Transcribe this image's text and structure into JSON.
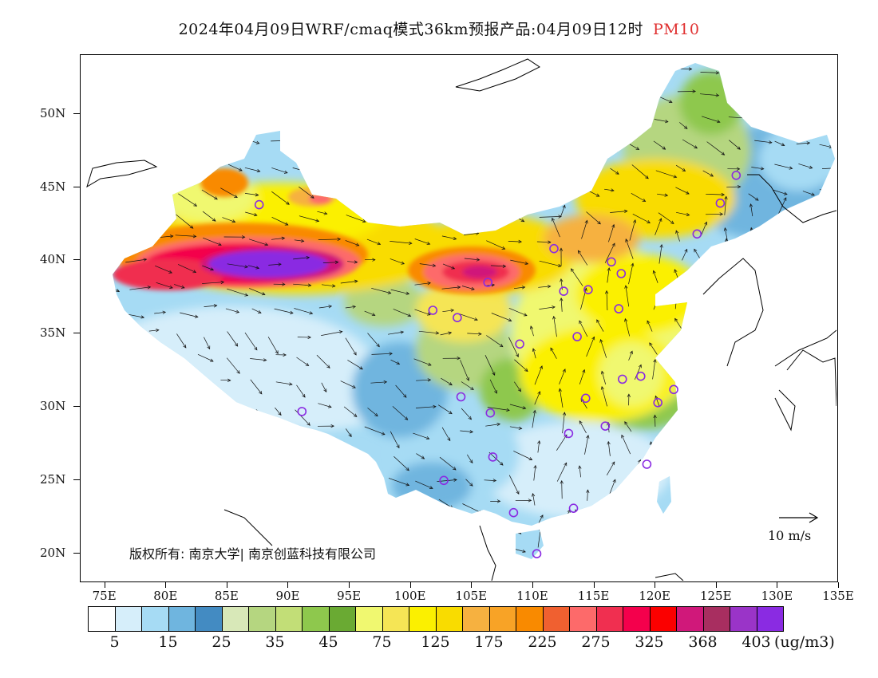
{
  "header": {
    "title": "2024年04月09日WRF/cmaq模式36km预报产品:04月09日12时",
    "product": "PM10",
    "product_color": "#e03030"
  },
  "map": {
    "lon_range": [
      73,
      135
    ],
    "lat_range": [
      18,
      54
    ],
    "lat_labels": [
      {
        "value": 50,
        "text": "50N"
      },
      {
        "value": 45,
        "text": "45N"
      },
      {
        "value": 40,
        "text": "40N"
      },
      {
        "value": 35,
        "text": "35N"
      },
      {
        "value": 30,
        "text": "30N"
      },
      {
        "value": 25,
        "text": "25N"
      },
      {
        "value": 20,
        "text": "20N"
      }
    ],
    "lon_labels": [
      {
        "value": 75,
        "text": "75E"
      },
      {
        "value": 80,
        "text": "80E"
      },
      {
        "value": 85,
        "text": "85E"
      },
      {
        "value": 90,
        "text": "90E"
      },
      {
        "value": 95,
        "text": "95E"
      },
      {
        "value": 100,
        "text": "100E"
      },
      {
        "value": 105,
        "text": "105E"
      },
      {
        "value": 110,
        "text": "110E"
      },
      {
        "value": 115,
        "text": "115E"
      },
      {
        "value": 120,
        "text": "120E"
      },
      {
        "value": 125,
        "text": "125E"
      },
      {
        "value": 130,
        "text": "130E"
      },
      {
        "value": 135,
        "text": "135E"
      }
    ],
    "copyright": "版权所有: 南京大学| 南京创蓝科技有限公司",
    "wind_key": {
      "label": "10 m/s"
    },
    "city_marker_color": "#8a2be2",
    "city_markers": [
      {
        "lon": 87.6,
        "lat": 43.8
      },
      {
        "lon": 91.1,
        "lat": 29.7
      },
      {
        "lon": 101.8,
        "lat": 36.6
      },
      {
        "lon": 103.8,
        "lat": 36.1
      },
      {
        "lon": 106.3,
        "lat": 38.5
      },
      {
        "lon": 111.7,
        "lat": 40.8
      },
      {
        "lon": 112.5,
        "lat": 37.9
      },
      {
        "lon": 114.5,
        "lat": 38.0
      },
      {
        "lon": 116.4,
        "lat": 39.9
      },
      {
        "lon": 117.2,
        "lat": 39.1
      },
      {
        "lon": 117.0,
        "lat": 36.7
      },
      {
        "lon": 113.6,
        "lat": 34.8
      },
      {
        "lon": 108.9,
        "lat": 34.3
      },
      {
        "lon": 104.1,
        "lat": 30.7
      },
      {
        "lon": 106.5,
        "lat": 29.6
      },
      {
        "lon": 106.7,
        "lat": 26.6
      },
      {
        "lon": 102.7,
        "lat": 25.0
      },
      {
        "lon": 114.3,
        "lat": 30.6
      },
      {
        "lon": 112.9,
        "lat": 28.2
      },
      {
        "lon": 115.9,
        "lat": 28.7
      },
      {
        "lon": 117.3,
        "lat": 31.9
      },
      {
        "lon": 118.8,
        "lat": 32.1
      },
      {
        "lon": 120.2,
        "lat": 30.3
      },
      {
        "lon": 121.5,
        "lat": 31.2
      },
      {
        "lon": 119.3,
        "lat": 26.1
      },
      {
        "lon": 113.3,
        "lat": 23.1
      },
      {
        "lon": 108.4,
        "lat": 22.8
      },
      {
        "lon": 110.3,
        "lat": 20.0
      },
      {
        "lon": 123.4,
        "lat": 41.8
      },
      {
        "lon": 125.3,
        "lat": 43.9
      },
      {
        "lon": 126.6,
        "lat": 45.8
      }
    ]
  },
  "colorbar": {
    "colors": [
      "#ffffff",
      "#d6eefa",
      "#a6dbf4",
      "#6fb5df",
      "#438bc2",
      "#d8e8b8",
      "#b5d680",
      "#c2de77",
      "#8ec84d",
      "#6aaa33",
      "#f0f870",
      "#f5e555",
      "#fbf000",
      "#f9dc00",
      "#f6b140",
      "#f8a326",
      "#f98a00",
      "#f06030",
      "#fd6a6a",
      "#f02f50",
      "#f4004c",
      "#fb0000",
      "#d0187a",
      "#a82e60",
      "#9a34c8",
      "#8a2be2"
    ],
    "labels": [
      {
        "index": 1,
        "text": "5"
      },
      {
        "index": 3,
        "text": "15"
      },
      {
        "index": 5,
        "text": "25"
      },
      {
        "index": 7,
        "text": "35"
      },
      {
        "index": 9,
        "text": "45"
      },
      {
        "index": 11,
        "text": "75"
      },
      {
        "index": 13,
        "text": "125"
      },
      {
        "index": 15,
        "text": "175"
      },
      {
        "index": 17,
        "text": "225"
      },
      {
        "index": 19,
        "text": "275"
      },
      {
        "index": 21,
        "text": "325"
      },
      {
        "index": 23,
        "text": "368"
      },
      {
        "index": 25,
        "text": "403"
      }
    ],
    "unit": "(ug/m3)"
  }
}
